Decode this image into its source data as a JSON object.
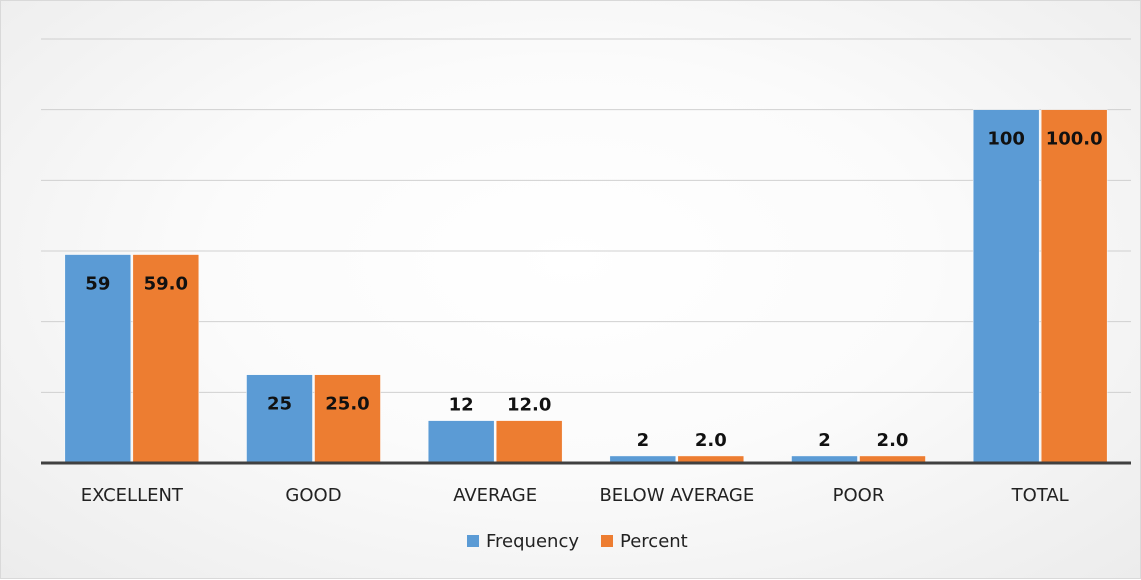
{
  "chart_data": {
    "type": "bar",
    "categories": [
      "EXCELLENT",
      "GOOD",
      "AVERAGE",
      "BELOW AVERAGE",
      "POOR",
      "TOTAL"
    ],
    "series": [
      {
        "name": "Frequency",
        "values": [
          59,
          25,
          12,
          2,
          2,
          100
        ],
        "labels": [
          "59",
          "25",
          "12",
          "2",
          "2",
          "100"
        ],
        "color": "#5B9BD5"
      },
      {
        "name": "Percent",
        "values": [
          59.0,
          25.0,
          12.0,
          2.0,
          2.0,
          100.0
        ],
        "labels": [
          "59.0",
          "25.0",
          "12.0",
          "2.0",
          "2.0",
          "100.0"
        ],
        "color": "#ED7D31"
      }
    ],
    "ylim": [
      0,
      120
    ],
    "gridlines": true,
    "legend": "bottom",
    "title": "",
    "xlabel": "",
    "ylabel": ""
  }
}
